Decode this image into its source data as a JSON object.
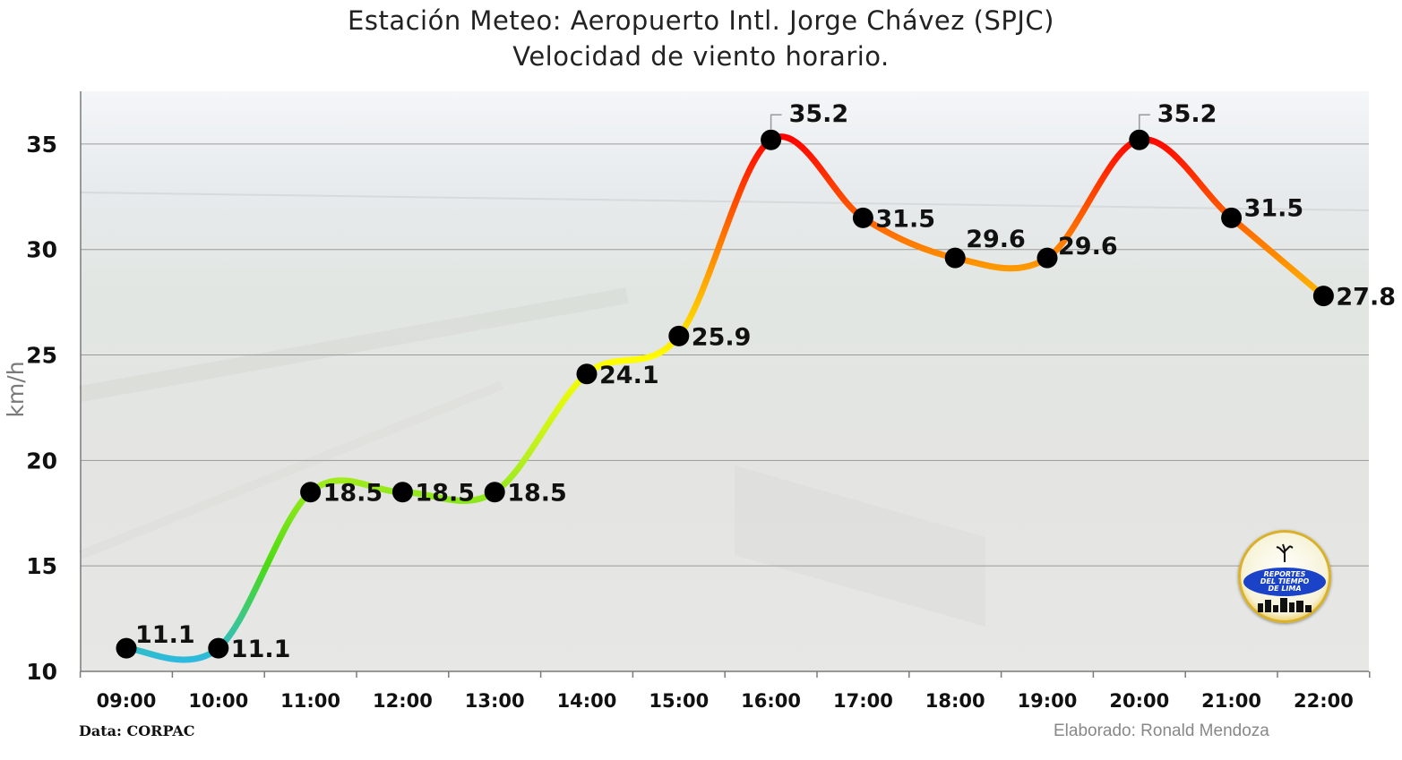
{
  "chart_data": {
    "type": "line",
    "title": "Estación Meteo: Aeropuerto Intl. Jorge Chávez (SPJC)",
    "subtitle": "Velocidad de viento horario.",
    "xlabel": "",
    "ylabel": "km/h",
    "categories": [
      "09:00",
      "10:00",
      "11:00",
      "12:00",
      "13:00",
      "14:00",
      "15:00",
      "16:00",
      "17:00",
      "18:00",
      "19:00",
      "20:00",
      "21:00",
      "22:00"
    ],
    "series": [
      {
        "values": [
          11.1,
          11.1,
          18.5,
          18.5,
          18.5,
          24.1,
          25.9,
          35.2,
          31.5,
          29.6,
          29.6,
          35.2,
          31.5,
          27.8
        ]
      }
    ],
    "data_labels": [
      "11.1",
      "11.1",
      "18.5",
      "18.5",
      "18.5",
      "24.1",
      "25.9",
      "35.2",
      "31.5",
      "29.6",
      "29.6",
      "35.2",
      "31.5",
      "27.8"
    ],
    "ylim": [
      10,
      37.5
    ],
    "yticks": [
      10,
      15,
      20,
      25,
      30,
      35
    ],
    "grid": true,
    "line_color_scale": {
      "low": "#29b6f6",
      "mid_low": "#4cdb12",
      "mid": "#ffff00",
      "mid_high": "#ff9900",
      "high": "#ff0000"
    },
    "marker_color": "#000000"
  },
  "footer": {
    "source": "Data: CORPAC",
    "credit": "Elaborado: Ronald Mendoza"
  },
  "logo": {
    "line1": "REPORTES",
    "line2": "DEL TIEMPO",
    "line3": "DE LIMA"
  }
}
